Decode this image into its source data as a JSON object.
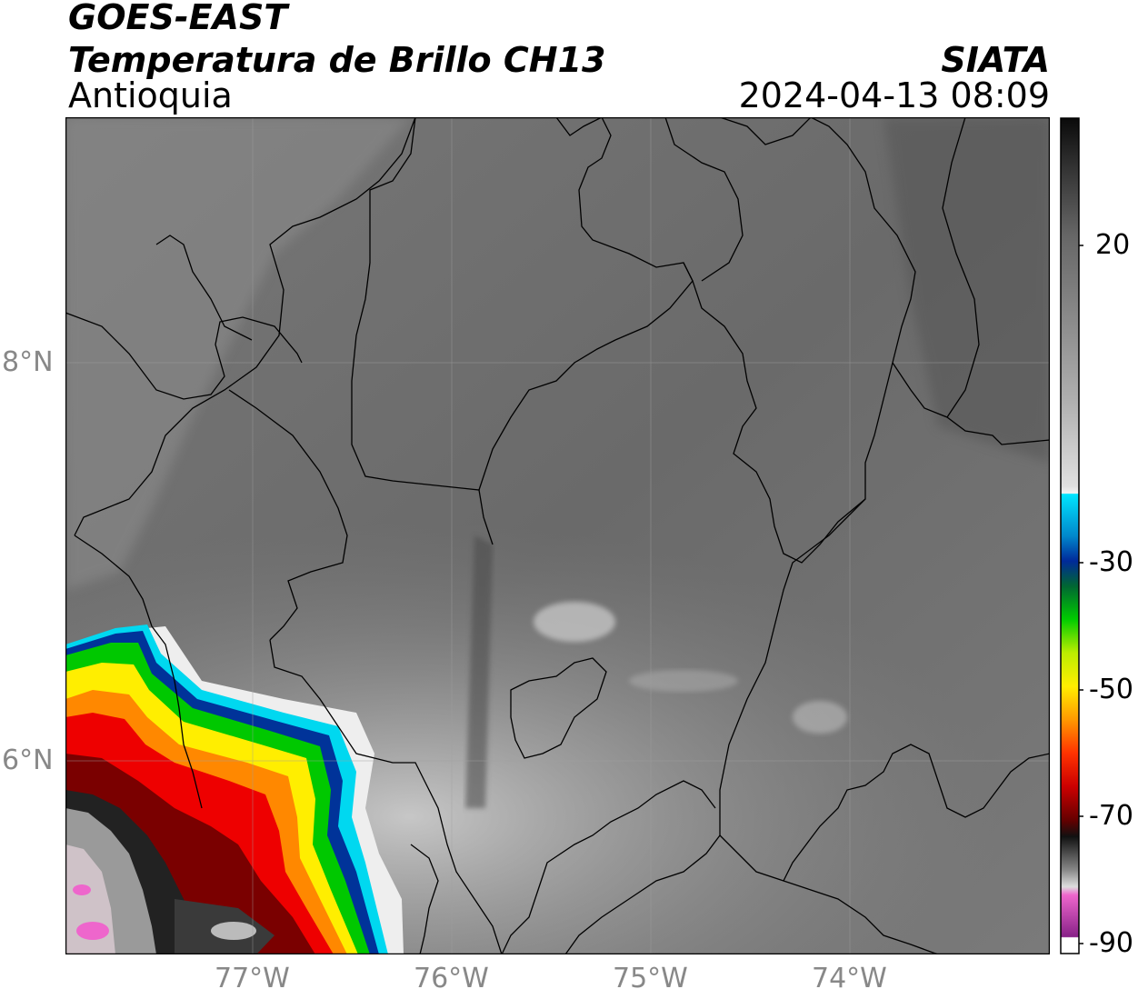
{
  "header": {
    "satellite": "GOES-EAST",
    "product": "Temperatura de Brillo CH13",
    "region": "Antioquia",
    "agency": "SIATA",
    "timestamp": "2024-04-13 08:09"
  },
  "map": {
    "lon_range": [
      -77.95,
      -73.0
    ],
    "lat_range": [
      5.0,
      9.2
    ],
    "lat_ticks": [
      {
        "label": "8°N",
        "value": 8
      },
      {
        "label": "6°N",
        "value": 6
      }
    ],
    "lon_ticks": [
      {
        "label": "77°W",
        "value": -77
      },
      {
        "label": "76°W",
        "value": -76
      },
      {
        "label": "75°W",
        "value": -75
      },
      {
        "label": "74°W",
        "value": -74
      }
    ]
  },
  "colorbar": {
    "range": [
      -90,
      40
    ],
    "ticks": [
      {
        "label": "20",
        "value": 20
      },
      {
        "label": "-30",
        "value": -30
      },
      {
        "label": "-50",
        "value": -50
      },
      {
        "label": "-70",
        "value": -70
      },
      {
        "label": "-90",
        "value": -90
      }
    ],
    "colors": {
      "warm_dark": "#111111",
      "mid_gray": "#808080",
      "light": "#f4f4f4",
      "cyan": "#00e5ff",
      "blue": "#002a9a",
      "green": "#00cc00",
      "yellow": "#ffff00",
      "orange": "#ff8800",
      "red": "#ee0000",
      "dark_red": "#660000",
      "black": "#000000",
      "pink": "#ee66cc",
      "purple": "#882288"
    }
  }
}
